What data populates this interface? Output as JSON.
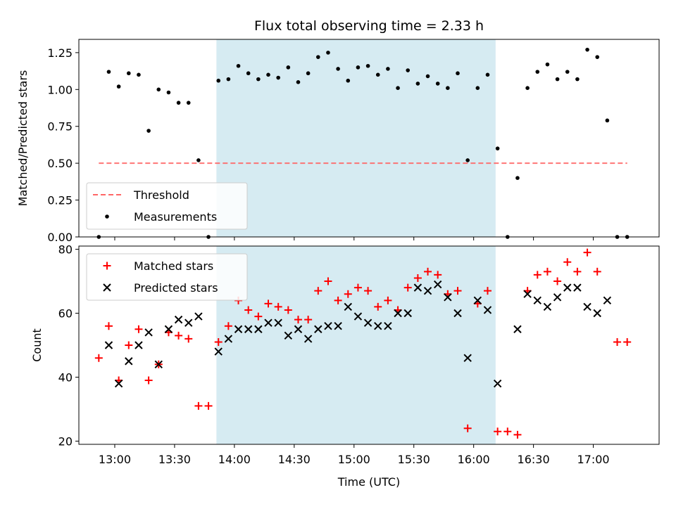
{
  "chart_data": [
    {
      "type": "scatter",
      "title": "Flux total observing time = 2.33 h",
      "ylabel": "Matched/Predicted stars",
      "xlabel": "",
      "xlim": [
        "12:42",
        "17:33"
      ],
      "ylim": [
        0,
        1.34
      ],
      "yticks": [
        "0.00",
        "0.25",
        "0.50",
        "0.75",
        "1.00",
        "1.25"
      ],
      "highlight_span": [
        "13:51",
        "16:11"
      ],
      "highlight_color": "#add8e6",
      "legend_position": "lower-left",
      "series": [
        {
          "name": "Threshold",
          "style": "dashed-line",
          "color": "#ff6666",
          "x": [
            "12:52",
            "17:17"
          ],
          "values": [
            0.5,
            0.5
          ]
        },
        {
          "name": "Measurements",
          "style": "dot",
          "color": "#000000",
          "x": [
            "12:52",
            "12:57",
            "13:02",
            "13:07",
            "13:12",
            "13:17",
            "13:22",
            "13:27",
            "13:32",
            "13:37",
            "13:42",
            "13:47",
            "13:52",
            "13:57",
            "14:02",
            "14:07",
            "14:12",
            "14:17",
            "14:22",
            "14:27",
            "14:32",
            "14:37",
            "14:42",
            "14:47",
            "14:52",
            "14:57",
            "15:02",
            "15:07",
            "15:12",
            "15:17",
            "15:22",
            "15:27",
            "15:32",
            "15:37",
            "15:42",
            "15:47",
            "15:52",
            "15:57",
            "16:02",
            "16:07",
            "16:12",
            "16:17",
            "16:22",
            "16:27",
            "16:32",
            "16:37",
            "16:42",
            "16:47",
            "16:52",
            "16:57",
            "17:02",
            "17:07",
            "17:12",
            "17:17"
          ],
          "values": [
            0.0,
            1.12,
            1.02,
            1.11,
            1.1,
            0.72,
            1.0,
            0.98,
            0.91,
            0.91,
            0.52,
            0.0,
            1.06,
            1.07,
            1.16,
            1.11,
            1.07,
            1.1,
            1.08,
            1.15,
            1.05,
            1.11,
            1.22,
            1.25,
            1.14,
            1.06,
            1.15,
            1.16,
            1.1,
            1.14,
            1.01,
            1.13,
            1.04,
            1.09,
            1.04,
            1.01,
            1.11,
            0.52,
            1.01,
            1.1,
            0.6,
            0.0,
            0.4,
            1.01,
            1.12,
            1.17,
            1.07,
            1.12,
            1.07,
            1.27,
            1.22,
            0.79,
            0.0,
            0.0
          ]
        }
      ]
    },
    {
      "type": "scatter",
      "title": "",
      "ylabel": "Count",
      "xlabel": "Time (UTC)",
      "xlim": [
        "12:42",
        "17:33"
      ],
      "ylim": [
        19,
        81
      ],
      "yticks": [
        "20",
        "40",
        "60",
        "80"
      ],
      "xticks": [
        "13:00",
        "13:30",
        "14:00",
        "14:30",
        "15:00",
        "15:30",
        "16:00",
        "16:30",
        "17:00"
      ],
      "highlight_span": [
        "13:51",
        "16:11"
      ],
      "legend_position": "upper-left",
      "series": [
        {
          "name": "Matched stars",
          "style": "plus",
          "color": "#ff0000",
          "x": [
            "12:52",
            "12:57",
            "13:02",
            "13:07",
            "13:12",
            "13:17",
            "13:22",
            "13:27",
            "13:32",
            "13:37",
            "13:42",
            "13:47",
            "13:52",
            "13:57",
            "14:02",
            "14:07",
            "14:12",
            "14:17",
            "14:22",
            "14:27",
            "14:32",
            "14:37",
            "14:42",
            "14:47",
            "14:52",
            "14:57",
            "15:02",
            "15:07",
            "15:12",
            "15:17",
            "15:22",
            "15:27",
            "15:32",
            "15:37",
            "15:42",
            "15:47",
            "15:52",
            "15:57",
            "16:02",
            "16:07",
            "16:12",
            "16:17",
            "16:22",
            "16:27",
            "16:32",
            "16:37",
            "16:42",
            "16:47",
            "16:52",
            "16:57",
            "17:02",
            "17:07",
            "17:12",
            "17:17"
          ],
          "values": [
            46,
            56,
            39,
            50,
            55,
            39,
            44,
            54,
            53,
            52,
            31,
            31,
            51,
            56,
            64,
            61,
            59,
            63,
            62,
            61,
            58,
            58,
            67,
            70,
            64,
            66,
            68,
            67,
            62,
            64,
            61,
            68,
            71,
            73,
            72,
            66,
            67,
            24,
            63,
            67,
            23,
            23,
            22,
            67,
            72,
            73,
            70,
            76,
            73,
            79,
            73,
            null,
            51,
            51
          ]
        },
        {
          "name": "Predicted stars",
          "style": "x",
          "color": "#000000",
          "x": [
            "12:57",
            "13:02",
            "13:07",
            "13:12",
            "13:17",
            "13:22",
            "13:27",
            "13:32",
            "13:37",
            "13:42",
            "13:52",
            "13:57",
            "14:02",
            "14:07",
            "14:12",
            "14:17",
            "14:22",
            "14:27",
            "14:32",
            "14:37",
            "14:42",
            "14:47",
            "14:52",
            "14:57",
            "15:02",
            "15:07",
            "15:12",
            "15:17",
            "15:22",
            "15:27",
            "15:32",
            "15:37",
            "15:42",
            "15:47",
            "15:52",
            "15:57",
            "16:02",
            "16:07",
            "16:12",
            "16:22",
            "16:27",
            "16:32",
            "16:37",
            "16:42",
            "16:47",
            "16:52",
            "16:57",
            "17:02",
            "17:07"
          ],
          "values": [
            50,
            38,
            45,
            50,
            54,
            44,
            55,
            58,
            57,
            59,
            48,
            52,
            55,
            55,
            55,
            57,
            57,
            53,
            55,
            52,
            55,
            56,
            56,
            62,
            59,
            57,
            56,
            56,
            60,
            60,
            68,
            67,
            69,
            65,
            60,
            46,
            64,
            61,
            38,
            55,
            66,
            64,
            62,
            65,
            68,
            68,
            62,
            60,
            64
          ]
        }
      ]
    }
  ]
}
